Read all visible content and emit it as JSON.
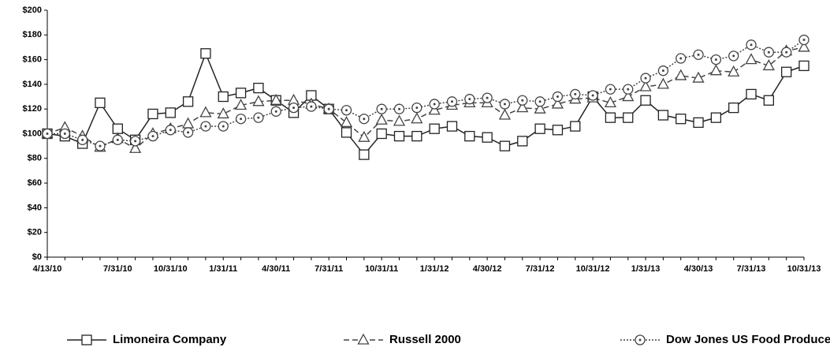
{
  "chart_data": {
    "type": "line",
    "categories": [
      "4/13/10",
      null,
      null,
      null,
      "7/31/10",
      null,
      null,
      "10/31/10",
      null,
      null,
      "1/31/11",
      null,
      null,
      "4/30/11",
      null,
      null,
      "7/31/11",
      null,
      null,
      "10/31/11",
      null,
      null,
      "1/31/12",
      null,
      null,
      "4/30/12",
      null,
      null,
      "7/31/12",
      null,
      null,
      "10/31/12",
      null,
      null,
      "1/31/13",
      null,
      null,
      "4/30/13",
      null,
      null,
      "7/31/13",
      null,
      null,
      "10/31/13"
    ],
    "series": [
      {
        "name": "Limoneira Company",
        "color": "#222222",
        "marker": "square",
        "dash": "solid",
        "values": [
          100,
          98,
          92,
          125,
          104,
          95,
          116,
          117,
          126,
          165,
          130,
          133,
          137,
          127,
          117,
          131,
          120,
          101,
          83,
          100,
          98,
          98,
          104,
          106,
          98,
          97,
          90,
          94,
          104,
          103,
          106,
          130,
          113,
          113,
          127,
          115,
          112,
          109,
          113,
          121,
          132,
          127,
          150,
          155
        ]
      },
      {
        "name": "Russell 2000",
        "color": "#444444",
        "marker": "triangle",
        "dash": "dashed",
        "values": [
          100,
          105,
          98,
          89,
          96,
          88,
          100,
          104,
          108,
          117,
          116,
          123,
          126,
          127,
          127,
          124,
          120,
          109,
          97,
          111,
          110,
          112,
          119,
          123,
          125,
          125,
          115,
          121,
          120,
          124,
          128,
          129,
          125,
          130,
          138,
          140,
          147,
          145,
          151,
          150,
          160,
          155,
          167,
          170
        ]
      },
      {
        "name": "Dow Jones US Food Producers",
        "color": "#444444",
        "marker": "circle",
        "dash": "dotted",
        "values": [
          100,
          100,
          95,
          90,
          95,
          94,
          98,
          103,
          101,
          106,
          106,
          112,
          113,
          118,
          121,
          122,
          120,
          119,
          112,
          120,
          120,
          121,
          124,
          126,
          128,
          129,
          124,
          127,
          126,
          130,
          132,
          131,
          136,
          136,
          145,
          151,
          161,
          164,
          160,
          163,
          172,
          166,
          166,
          176
        ]
      }
    ],
    "ylim": [
      0,
      200
    ],
    "yticks": [
      {
        "value": 0,
        "label": "$0"
      },
      {
        "value": 20,
        "label": "$20"
      },
      {
        "value": 40,
        "label": "$40"
      },
      {
        "value": 60,
        "label": "$60"
      },
      {
        "value": 80,
        "label": "$80"
      },
      {
        "value": 100,
        "label": "$100"
      },
      {
        "value": 120,
        "label": "$120"
      },
      {
        "value": 140,
        "label": "$140"
      },
      {
        "value": 160,
        "label": "$160"
      },
      {
        "value": 180,
        "label": "$180"
      },
      {
        "value": 200,
        "label": "$200"
      }
    ],
    "grid": false,
    "legend": "bottom"
  }
}
